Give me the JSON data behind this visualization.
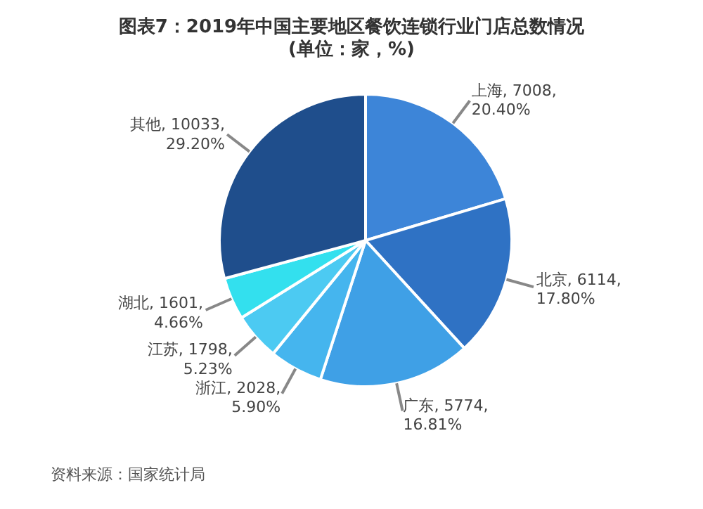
{
  "chart_data": {
    "type": "pie",
    "title": "图表7：2019年中国主要地区餐饮连锁行业门店总数情况(单位：家，%)",
    "categories": [
      "上海",
      "北京",
      "广东",
      "浙江",
      "江苏",
      "湖北",
      "其他"
    ],
    "values": [
      7008,
      6114,
      5774,
      2028,
      1798,
      1601,
      10033
    ],
    "value_labels": [
      "7008, 20.40%",
      "6114, 17.80%",
      "5774, 16.81%",
      "2028, 5.90%",
      "1798, 5.23%",
      "1601, 4.66%",
      "10033, 29.20%"
    ],
    "colors": [
      "#3d85d8",
      "#2f72c4",
      "#3fa0e6",
      "#45b5ee",
      "#4ccaf2",
      "#33e0ee",
      "#1f4e8c"
    ],
    "annotations": [
      "资料来源：国家统计局"
    ]
  }
}
